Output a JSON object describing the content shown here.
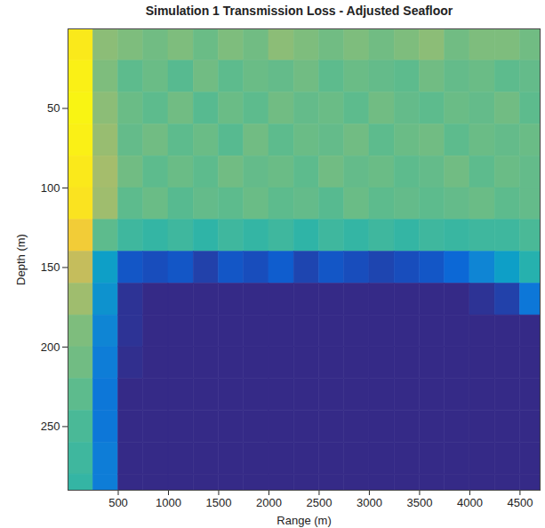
{
  "chart_data": {
    "type": "heatmap",
    "title": "Simulation 1 Transmission Loss - Adjusted Seafloor",
    "xlabel": "Range (m)",
    "ylabel": "Depth (m)",
    "xlim": [
      0,
      4700
    ],
    "ylim": [
      0,
      290
    ],
    "xticks": [
      500,
      1000,
      1500,
      2000,
      2500,
      3000,
      3500,
      4000,
      4500
    ],
    "yticks": [
      50,
      100,
      150,
      200,
      250
    ],
    "color_range": [
      0,
      1
    ],
    "x": [
      125,
      375,
      625,
      875,
      1125,
      1375,
      1625,
      1875,
      2125,
      2375,
      2625,
      2875,
      3125,
      3375,
      3625,
      3875,
      4125,
      4375,
      4625
    ],
    "y": [
      10,
      30,
      50,
      70,
      90,
      110,
      130,
      150,
      170,
      190,
      210,
      230,
      250,
      270,
      290
    ],
    "z": [
      [
        0.95,
        0.62,
        0.6,
        0.58,
        0.6,
        0.57,
        0.6,
        0.58,
        0.62,
        0.6,
        0.58,
        0.6,
        0.58,
        0.6,
        0.62,
        0.58,
        0.6,
        0.6,
        0.58
      ],
      [
        0.97,
        0.6,
        0.55,
        0.57,
        0.54,
        0.58,
        0.55,
        0.57,
        0.56,
        0.58,
        0.55,
        0.57,
        0.56,
        0.55,
        0.58,
        0.56,
        0.57,
        0.55,
        0.56
      ],
      [
        0.98,
        0.62,
        0.57,
        0.55,
        0.58,
        0.54,
        0.57,
        0.55,
        0.58,
        0.56,
        0.57,
        0.55,
        0.58,
        0.56,
        0.55,
        0.57,
        0.56,
        0.58,
        0.55
      ],
      [
        0.97,
        0.64,
        0.56,
        0.58,
        0.55,
        0.57,
        0.54,
        0.58,
        0.55,
        0.57,
        0.56,
        0.58,
        0.55,
        0.57,
        0.58,
        0.55,
        0.57,
        0.56,
        0.57
      ],
      [
        0.95,
        0.66,
        0.58,
        0.55,
        0.57,
        0.55,
        0.58,
        0.56,
        0.57,
        0.55,
        0.58,
        0.56,
        0.57,
        0.55,
        0.56,
        0.58,
        0.55,
        0.57,
        0.56
      ],
      [
        0.93,
        0.65,
        0.55,
        0.57,
        0.54,
        0.56,
        0.55,
        0.57,
        0.55,
        0.56,
        0.54,
        0.57,
        0.55,
        0.56,
        0.55,
        0.56,
        0.57,
        0.55,
        0.56
      ],
      [
        0.85,
        0.55,
        0.5,
        0.48,
        0.5,
        0.47,
        0.5,
        0.48,
        0.5,
        0.47,
        0.5,
        0.48,
        0.5,
        0.48,
        0.5,
        0.49,
        0.5,
        0.5,
        0.52
      ],
      [
        0.72,
        0.35,
        0.1,
        0.08,
        0.1,
        0.05,
        0.1,
        0.08,
        0.12,
        0.06,
        0.1,
        0.08,
        0.06,
        0.08,
        0.1,
        0.15,
        0.25,
        0.35,
        0.45
      ],
      [
        0.65,
        0.3,
        0.02,
        0,
        0,
        0,
        0,
        0,
        0,
        0,
        0,
        0,
        0,
        0,
        0,
        0,
        0.02,
        0.05,
        0.2
      ],
      [
        0.6,
        0.25,
        0.02,
        0,
        0,
        0,
        0,
        0,
        0,
        0,
        0,
        0,
        0,
        0,
        0,
        0,
        0,
        0,
        0
      ],
      [
        0.58,
        0.22,
        0.01,
        0,
        0,
        0,
        0,
        0,
        0,
        0,
        0,
        0,
        0,
        0,
        0,
        0,
        0,
        0,
        0
      ],
      [
        0.55,
        0.2,
        0,
        0,
        0,
        0,
        0,
        0,
        0,
        0,
        0,
        0,
        0,
        0,
        0,
        0,
        0,
        0,
        0
      ],
      [
        0.52,
        0.2,
        0,
        0,
        0,
        0,
        0,
        0,
        0,
        0,
        0,
        0,
        0,
        0,
        0,
        0,
        0,
        0,
        0
      ],
      [
        0.5,
        0.22,
        0,
        0,
        0,
        0,
        0,
        0,
        0,
        0,
        0,
        0,
        0,
        0,
        0,
        0,
        0,
        0,
        0
      ],
      [
        0.48,
        0.22,
        0,
        0,
        0,
        0,
        0,
        0,
        0,
        0,
        0,
        0,
        0,
        0,
        0,
        0,
        0,
        0,
        0
      ]
    ]
  }
}
